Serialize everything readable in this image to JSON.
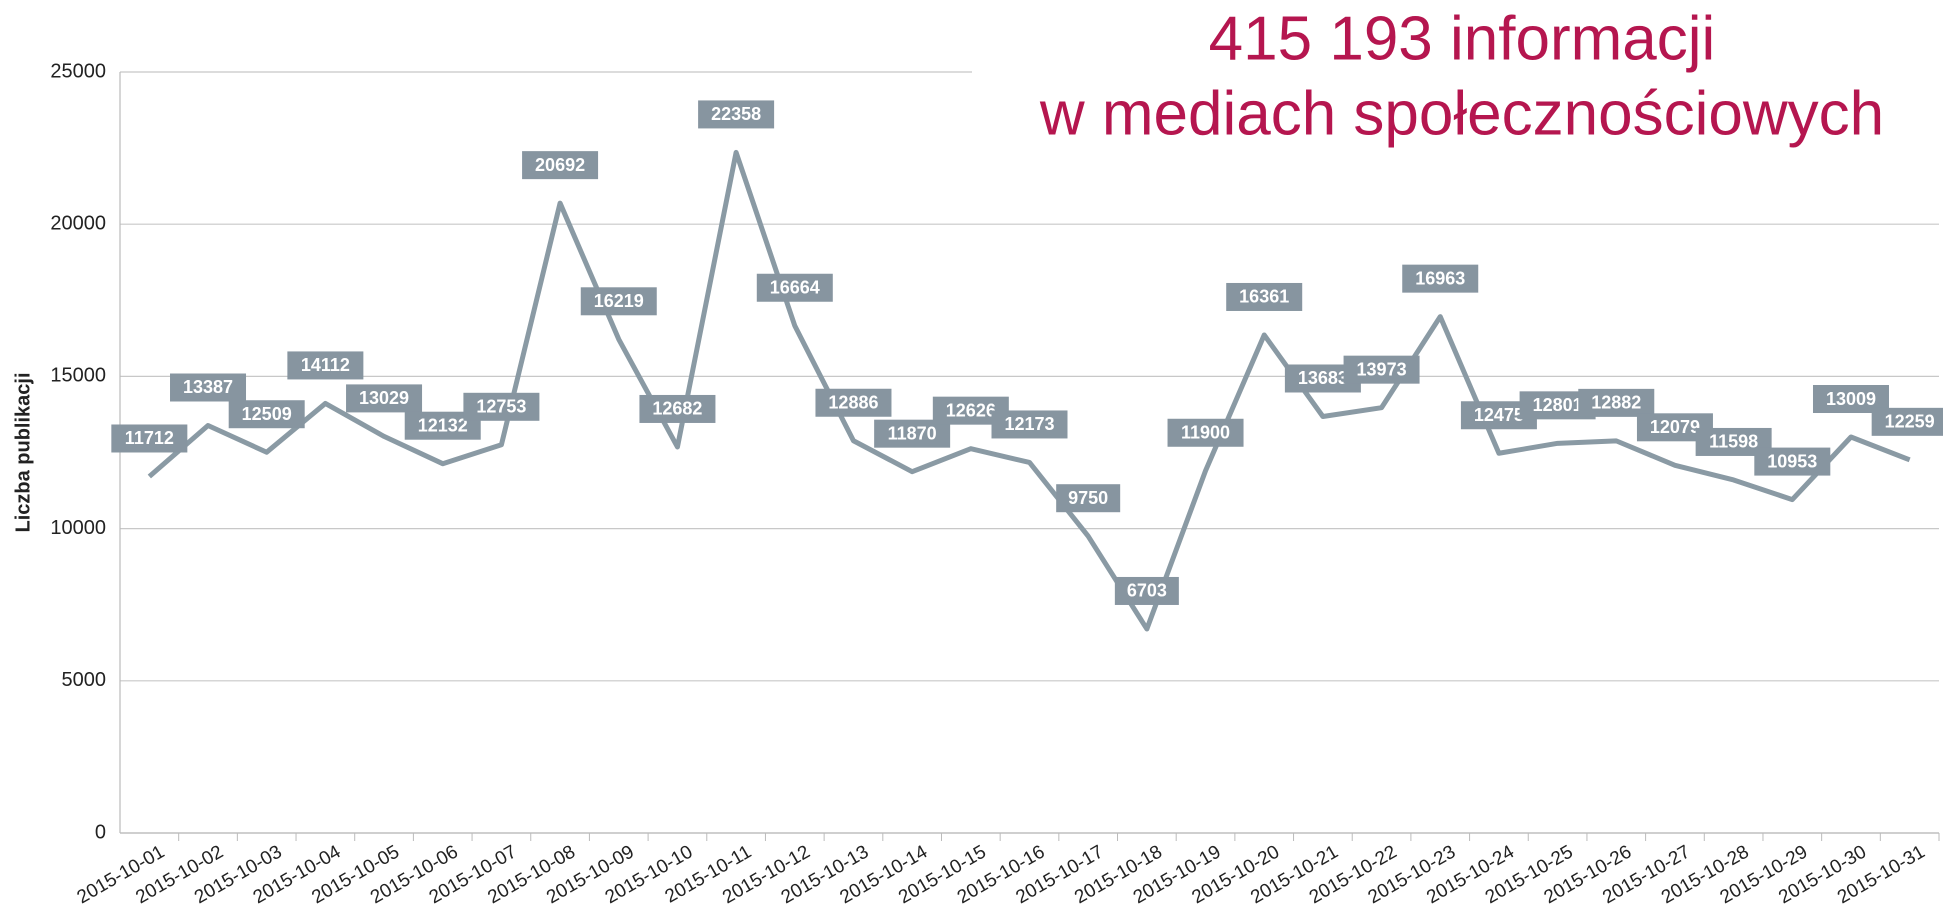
{
  "chart_data": {
    "type": "line",
    "title": [
      "415 193 informacji",
      "w mediach społecznościowych"
    ],
    "ylabel": "Liczba publikacji",
    "categories": [
      "2015-10-01",
      "2015-10-02",
      "2015-10-03",
      "2015-10-04",
      "2015-10-05",
      "2015-10-06",
      "2015-10-07",
      "2015-10-08",
      "2015-10-09",
      "2015-10-10",
      "2015-10-11",
      "2015-10-12",
      "2015-10-13",
      "2015-10-14",
      "2015-10-15",
      "2015-10-16",
      "2015-10-17",
      "2015-10-18",
      "2015-10-19",
      "2015-10-20",
      "2015-10-21",
      "2015-10-22",
      "2015-10-23",
      "2015-10-24",
      "2015-10-25",
      "2015-10-26",
      "2015-10-27",
      "2015-10-28",
      "2015-10-29",
      "2015-10-30",
      "2015-10-31"
    ],
    "series": [
      {
        "name": "Liczba publikacji",
        "color": "#8a9aa4",
        "values": [
          11712,
          13387,
          12509,
          14112,
          13029,
          12132,
          12753,
          20692,
          16219,
          12682,
          22358,
          16664,
          12886,
          11870,
          12626,
          12173,
          9750,
          6703,
          11900,
          16361,
          13683,
          13973,
          16963,
          12475,
          12801,
          12882,
          12079,
          11598,
          10953,
          13009,
          12259
        ]
      }
    ],
    "ylim": [
      0,
      25000
    ],
    "yticks": [
      0,
      5000,
      10000,
      15000,
      20000,
      25000
    ],
    "grid": true
  }
}
